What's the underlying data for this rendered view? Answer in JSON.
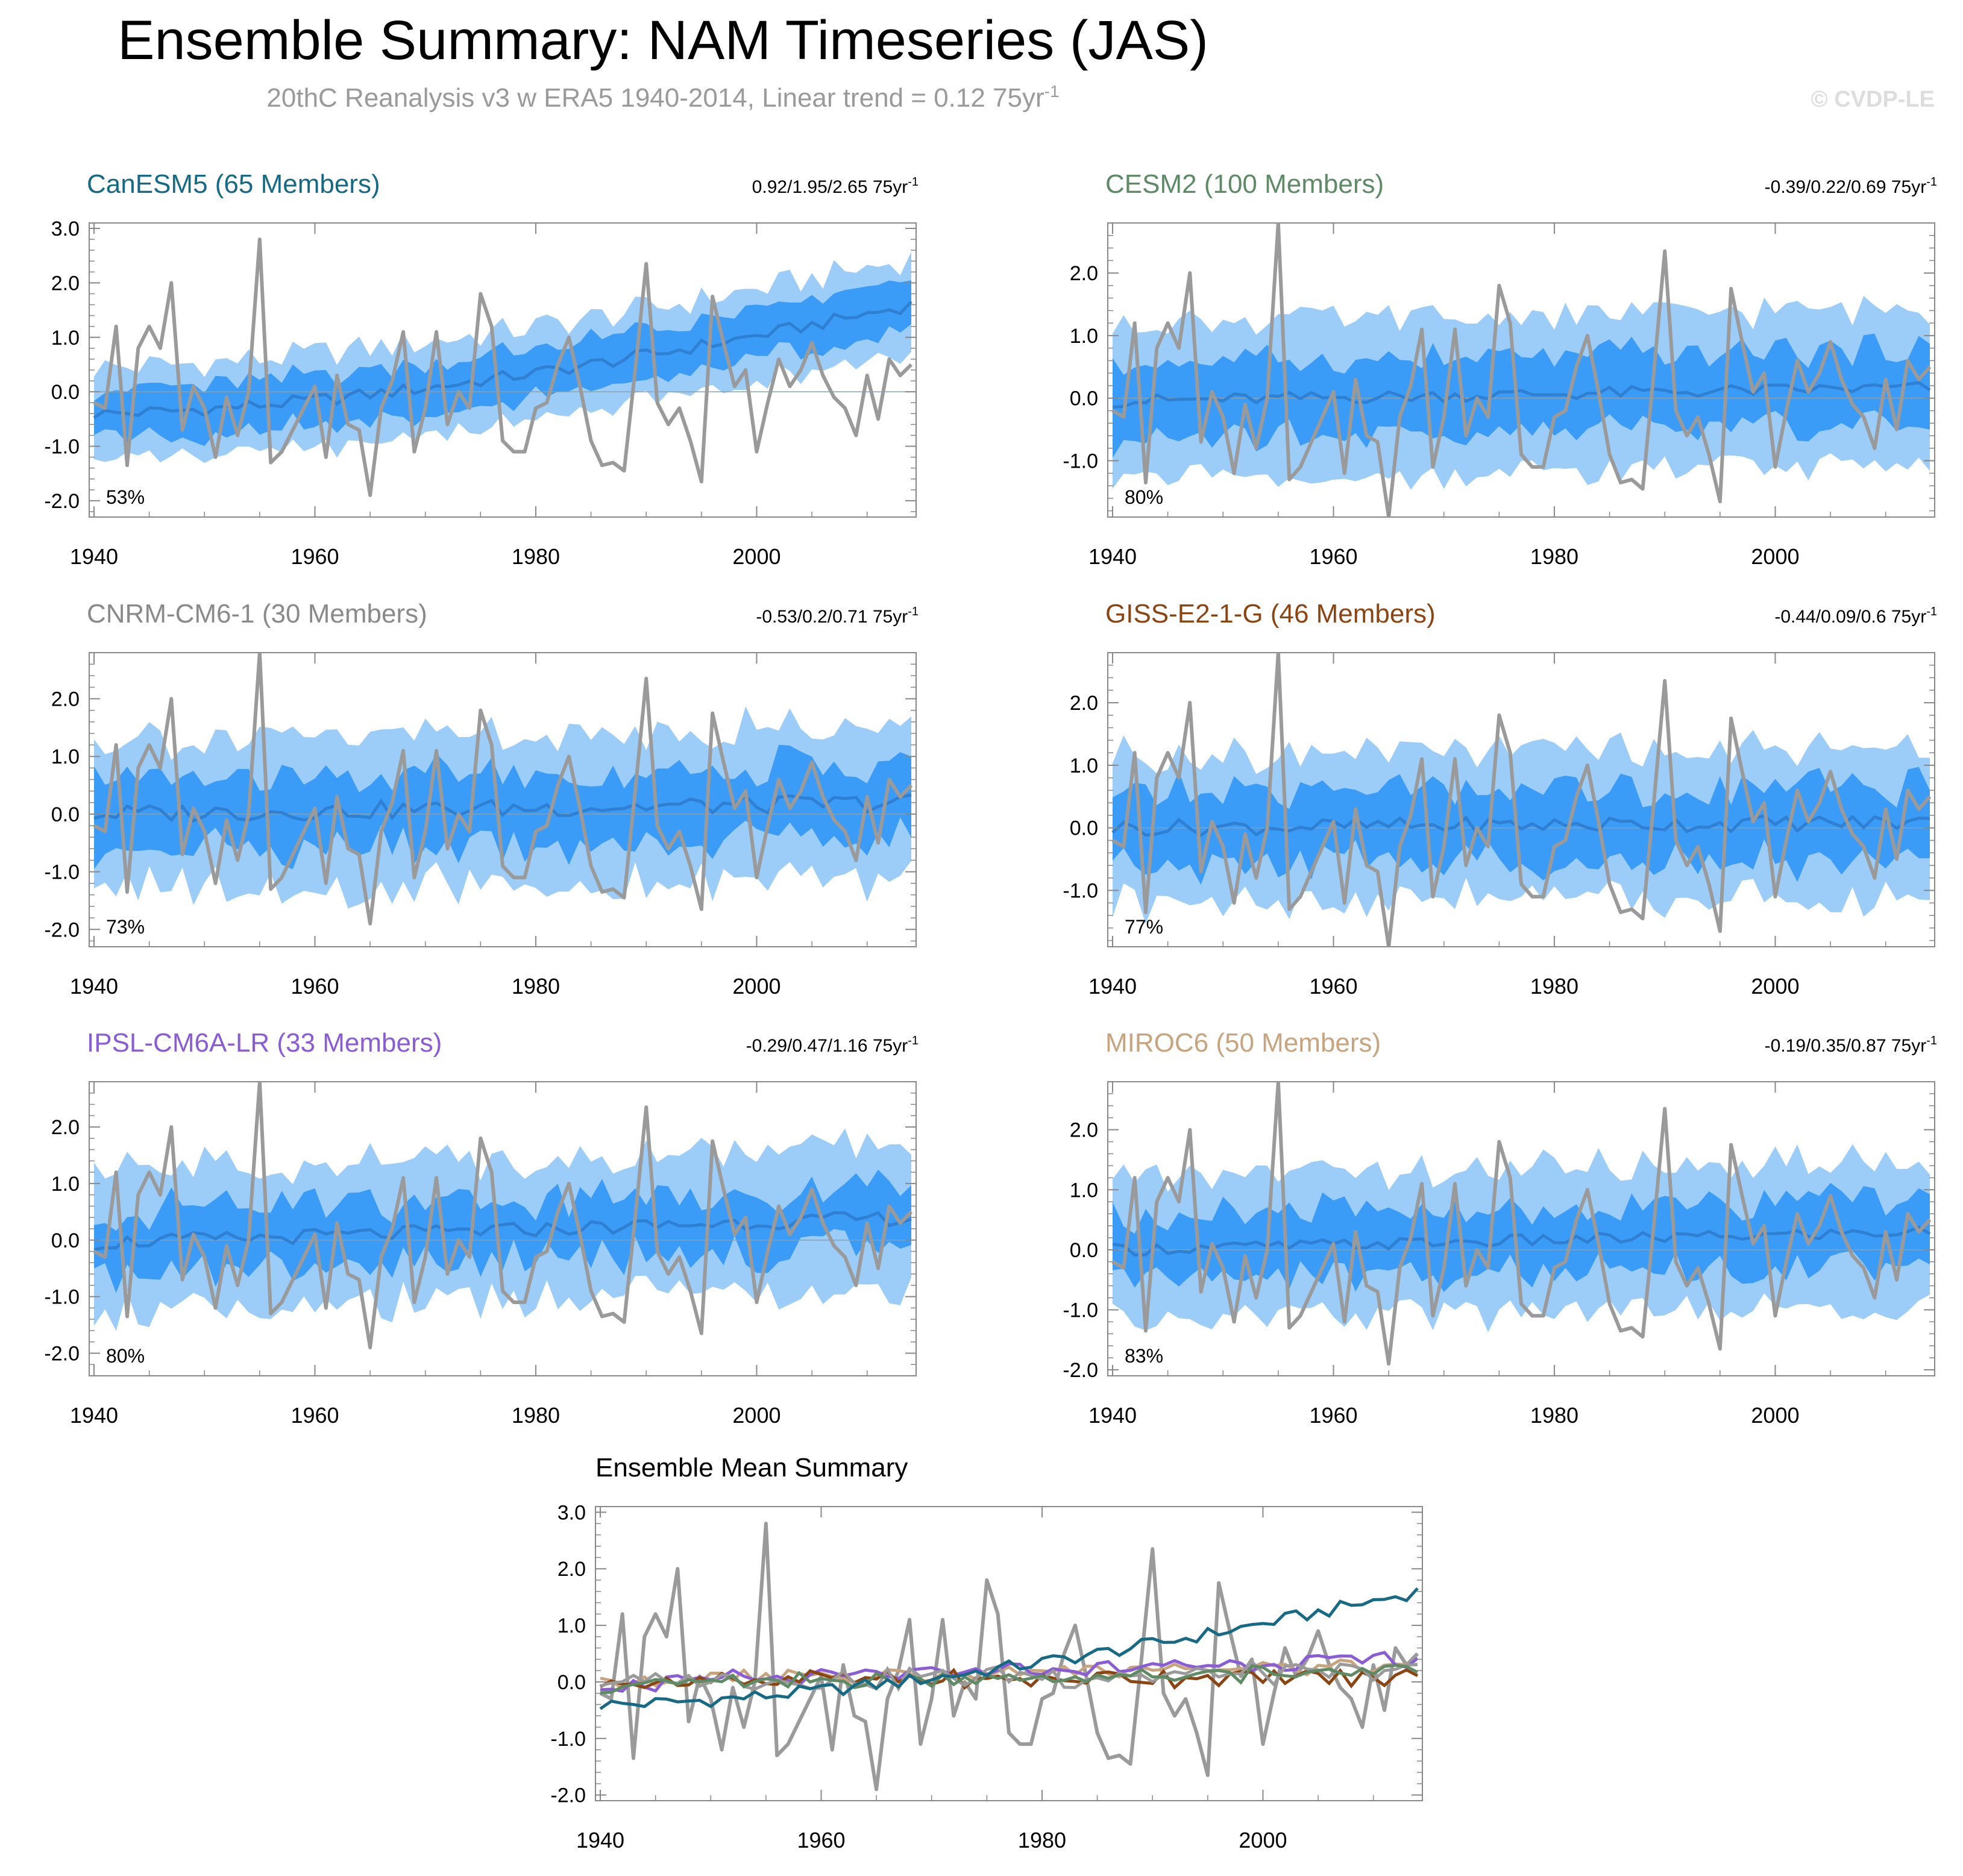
{
  "header": {
    "title": "Ensemble Summary: NAM Timeseries (JAS)",
    "subtitle_main": "20thC Reanalysis v3 w ERA5 1940-2014, Linear trend = 0.12 75yr",
    "subtitle_sup": "-1",
    "watermark": "© CVDP-LE"
  },
  "colors": {
    "band_outer": "#9ccdf8",
    "band_inner": "#3a9cf6",
    "ens_mean_line": "#2f80d2",
    "obs_line": "#9a9a9a",
    "axis": "#888888"
  },
  "chart_data": [
    {
      "type": "line",
      "name": "CanESM5",
      "title": "CanESM5 (65 Members)",
      "title_color": "#176a85",
      "trend_label": "0.92/1.95/2.65 75yr",
      "trend_sup": "-1",
      "percent_label": "53%",
      "ylim": [
        -2.3,
        3.1
      ],
      "yticks": [
        -2.0,
        -1.0,
        0.0,
        1.0,
        2.0,
        3.0
      ],
      "ytick_labels": [
        "-2.0",
        "-1.0",
        "0.0",
        "1.0",
        "2.0",
        "3.0"
      ],
      "xlim": [
        1940,
        2014
      ],
      "xticks": [
        1940,
        1960,
        1980,
        2000
      ],
      "xtick_labels": [
        "1940",
        "1960",
        "1980",
        "2000"
      ],
      "mean_start": -0.4,
      "mean_trend": 2.0,
      "mean_wiggle": 0.12,
      "inner_half_width": 0.45,
      "outer_half_width": 0.85,
      "band_jitter": 0.15,
      "series": [
        "ensemble-mean",
        "obs"
      ]
    },
    {
      "type": "line",
      "name": "CESM2",
      "title": "CESM2 (100 Members)",
      "title_color": "#5e8a66",
      "trend_label": "-0.39/0.22/0.69 75yr",
      "trend_sup": "-1",
      "percent_label": "80%",
      "ylim": [
        -1.9,
        2.8
      ],
      "yticks": [
        -1.0,
        0.0,
        1.0,
        2.0
      ],
      "ytick_labels": [
        "-1.0",
        "0.0",
        "1.0",
        "2.0"
      ],
      "xlim": [
        1940,
        2014
      ],
      "xticks": [
        1940,
        1960,
        1980,
        2000
      ],
      "xtick_labels": [
        "1940",
        "1960",
        "1980",
        "2000"
      ],
      "mean_start": -0.05,
      "mean_trend": 0.22,
      "mean_wiggle": 0.1,
      "inner_half_width": 0.6,
      "outer_half_width": 1.25,
      "band_jitter": 0.22,
      "series": [
        "ensemble-mean",
        "obs"
      ]
    },
    {
      "type": "line",
      "name": "CNRM-CM6-1",
      "title": "CNRM-CM6-1 (30 Members)",
      "title_color": "#8a8a8a",
      "trend_label": "-0.53/0.2/0.71 75yr",
      "trend_sup": "-1",
      "percent_label": "73%",
      "ylim": [
        -2.3,
        2.8
      ],
      "yticks": [
        -2.0,
        -1.0,
        0.0,
        1.0,
        2.0
      ],
      "ytick_labels": [
        "-2.0",
        "-1.0",
        "0.0",
        "1.0",
        "2.0"
      ],
      "xlim": [
        1940,
        2014
      ],
      "xticks": [
        1940,
        1960,
        1980,
        2000
      ],
      "xtick_labels": [
        "1940",
        "1960",
        "1980",
        "2000"
      ],
      "mean_start": 0.0,
      "mean_trend": 0.2,
      "mean_wiggle": 0.16,
      "inner_half_width": 0.62,
      "outer_half_width": 1.3,
      "band_jitter": 0.3,
      "series": [
        "ensemble-mean",
        "obs"
      ]
    },
    {
      "type": "line",
      "name": "GISS-E2-1-G",
      "title": "GISS-E2-1-G (46 Members)",
      "title_color": "#8b4513",
      "trend_label": "-0.44/0.09/0.6 75yr",
      "trend_sup": "-1",
      "percent_label": "77%",
      "ylim": [
        -1.9,
        2.8
      ],
      "yticks": [
        -1.0,
        0.0,
        1.0,
        2.0
      ],
      "ytick_labels": [
        "-1.0",
        "0.0",
        "1.0",
        "2.0"
      ],
      "xlim": [
        1940,
        2014
      ],
      "xticks": [
        1940,
        1960,
        1980,
        2000
      ],
      "xtick_labels": [
        "1940",
        "1960",
        "1980",
        "2000"
      ],
      "mean_start": 0.0,
      "mean_trend": 0.09,
      "mean_wiggle": 0.13,
      "inner_half_width": 0.58,
      "outer_half_width": 1.2,
      "band_jitter": 0.25,
      "series": [
        "ensemble-mean",
        "obs"
      ]
    },
    {
      "type": "line",
      "name": "IPSL-CM6A-LR",
      "title": "IPSL-CM6A-LR (33 Members)",
      "title_color": "#8a5cd6",
      "trend_label": "-0.29/0.47/1.16 75yr",
      "trend_sup": "-1",
      "percent_label": "80%",
      "ylim": [
        -2.4,
        2.8
      ],
      "yticks": [
        -2.0,
        -1.0,
        0.0,
        1.0,
        2.0
      ],
      "ytick_labels": [
        "-2.0",
        "-1.0",
        "0.0",
        "1.0",
        "2.0"
      ],
      "xlim": [
        1940,
        2014
      ],
      "xticks": [
        1940,
        1960,
        1980,
        2000
      ],
      "xtick_labels": [
        "1940",
        "1960",
        "1980",
        "2000"
      ],
      "mean_start": -0.05,
      "mean_trend": 0.45,
      "mean_wiggle": 0.13,
      "inner_half_width": 0.55,
      "outer_half_width": 1.25,
      "band_jitter": 0.3,
      "series": [
        "ensemble-mean",
        "obs"
      ]
    },
    {
      "type": "line",
      "name": "MIROC6",
      "title": "MIROC6 (50 Members)",
      "title_color": "#c8a47e",
      "trend_label": "-0.19/0.35/0.87 75yr",
      "trend_sup": "-1",
      "percent_label": "83%",
      "ylim": [
        -2.1,
        2.8
      ],
      "yticks": [
        -2.0,
        -1.0,
        0.0,
        1.0,
        2.0
      ],
      "ytick_labels": [
        "-2.0",
        "-1.0",
        "0.0",
        "1.0",
        "2.0"
      ],
      "xlim": [
        1940,
        2014
      ],
      "xticks": [
        1940,
        1960,
        1980,
        2000
      ],
      "xtick_labels": [
        "1940",
        "1960",
        "1980",
        "2000"
      ],
      "mean_start": 0.0,
      "mean_trend": 0.3,
      "mean_wiggle": 0.1,
      "inner_half_width": 0.55,
      "outer_half_width": 1.2,
      "band_jitter": 0.25,
      "series": [
        "ensemble-mean",
        "obs"
      ]
    },
    {
      "type": "line",
      "name": "Ensemble Mean Summary",
      "title": "Ensemble Mean Summary",
      "title_color": "#000000",
      "ylim": [
        -2.1,
        3.1
      ],
      "yticks": [
        -2.0,
        -1.0,
        0.0,
        1.0,
        2.0,
        3.0
      ],
      "ytick_labels": [
        "-2.0",
        "-1.0",
        "0.0",
        "1.0",
        "2.0",
        "3.0"
      ],
      "xlim": [
        1940,
        2014
      ],
      "xticks": [
        1940,
        1960,
        1980,
        2000
      ],
      "xtick_labels": [
        "1940",
        "1960",
        "1980",
        "2000"
      ],
      "series": [
        "CanESM5",
        "CESM2",
        "CNRM-CM6-1",
        "GISS-E2-1-G",
        "IPSL-CM6A-LR",
        "MIROC6",
        "obs"
      ]
    }
  ],
  "obs": {
    "name": "20thC Reanalysis v3 w ERA5",
    "x_start": 1940,
    "values": [
      -0.2,
      -0.3,
      1.2,
      -1.35,
      0.8,
      1.2,
      0.8,
      2.0,
      -0.7,
      0.1,
      -0.3,
      -1.2,
      -0.1,
      -0.8,
      0.0,
      2.8,
      -1.3,
      -1.1,
      -0.7,
      -0.3,
      0.1,
      -1.2,
      0.3,
      -0.6,
      -0.7,
      -1.9,
      -0.3,
      0.2,
      1.1,
      -1.1,
      -0.3,
      1.1,
      -0.6,
      0.0,
      -0.3,
      1.8,
      1.2,
      -0.9,
      -1.1,
      -1.1,
      -0.3,
      -0.2,
      0.5,
      1.0,
      0.1,
      -0.9,
      -1.35,
      -1.3,
      -1.45,
      0.4,
      2.35,
      -0.2,
      -0.6,
      -0.3,
      -0.9,
      -1.65,
      1.75,
      0.9,
      0.1,
      0.4,
      -1.1,
      -0.2,
      0.6,
      0.1,
      0.4,
      0.9,
      0.3,
      -0.1,
      -0.3,
      -0.8,
      0.3,
      -0.5,
      0.6,
      0.3,
      0.5
    ]
  },
  "ensemble_summary_colors": {
    "CanESM5": "#176a85",
    "CESM2": "#5e8a66",
    "CNRM-CM6-1": "#9a9a9a",
    "GISS-E2-1-G": "#8b4513",
    "IPSL-CM6A-LR": "#8a5cd6",
    "MIROC6": "#c8a47e"
  }
}
